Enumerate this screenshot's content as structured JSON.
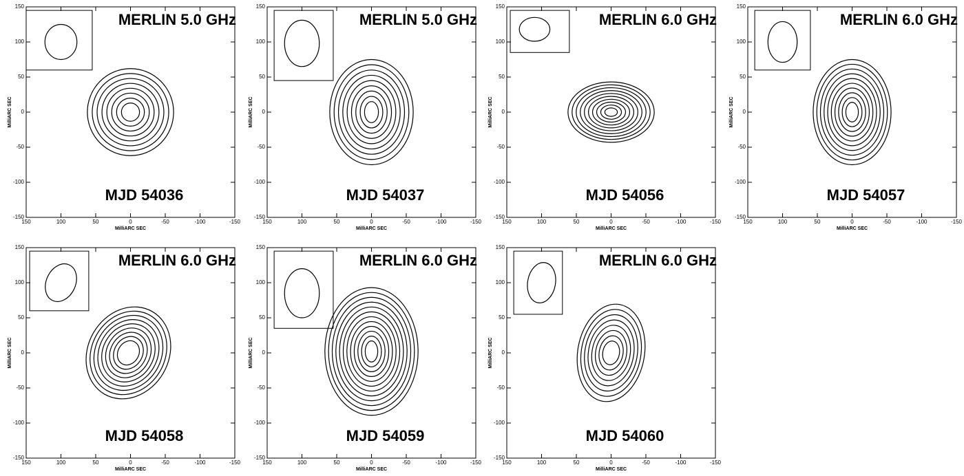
{
  "chart_data": [
    {
      "type": "contour",
      "title": "MERLIN 5.0 GHz",
      "label": "MJD 54036",
      "xlabel": "MilliARC SEC",
      "ylabel": "MilliARC SEC",
      "xlim": [
        150,
        -150
      ],
      "ylim": [
        -150,
        150
      ],
      "xticks": [
        150,
        100,
        50,
        0,
        -50,
        -100,
        -150
      ],
      "yticks": [
        -150,
        -100,
        -50,
        0,
        50,
        100,
        150
      ]
    },
    {
      "type": "contour",
      "title": "MERLIN 5.0 GHz",
      "label": "MJD 54037",
      "xlabel": "MilliARC SEC",
      "ylabel": "MilliARC SEC",
      "xlim": [
        150,
        -150
      ],
      "ylim": [
        -150,
        150
      ],
      "xticks": [
        150,
        100,
        50,
        0,
        -50,
        -100,
        -150
      ],
      "yticks": [
        -150,
        -100,
        -50,
        0,
        50,
        100,
        150
      ]
    },
    {
      "type": "contour",
      "title": "MERLIN 6.0 GHz",
      "label": "MJD 54056",
      "xlabel": "MilliARC SEC",
      "ylabel": "MilliARC SEC",
      "xlim": [
        150,
        -150
      ],
      "ylim": [
        -150,
        150
      ],
      "xticks": [
        150,
        100,
        50,
        0,
        -50,
        -100,
        -150
      ],
      "yticks": [
        -150,
        -100,
        -50,
        0,
        50,
        100,
        150
      ]
    },
    {
      "type": "contour",
      "title": "MERLIN 6.0 GHz",
      "label": "MJD 54057",
      "xlabel": "MilliARC SEC",
      "ylabel": "MilliARC SEC",
      "xlim": [
        150,
        -150
      ],
      "ylim": [
        -150,
        150
      ],
      "xticks": [
        150,
        100,
        50,
        0,
        -50,
        -100,
        -150
      ],
      "yticks": [
        -150,
        -100,
        -50,
        0,
        50,
        100,
        150
      ]
    },
    {
      "type": "contour",
      "title": "MERLIN 6.0 GHz",
      "label": "MJD 54058",
      "xlabel": "MilliARC SEC",
      "ylabel": "MilliARC SEC",
      "xlim": [
        150,
        -150
      ],
      "ylim": [
        -150,
        150
      ],
      "xticks": [
        150,
        100,
        50,
        0,
        -50,
        -100,
        -150
      ],
      "yticks": [
        -150,
        -100,
        -50,
        0,
        50,
        100,
        150
      ]
    },
    {
      "type": "contour",
      "title": "MERLIN 6.0 GHz",
      "label": "MJD 54059",
      "xlabel": "MilliARC SEC",
      "ylabel": "MilliARC SEC",
      "xlim": [
        150,
        -150
      ],
      "ylim": [
        -150,
        150
      ],
      "xticks": [
        150,
        100,
        50,
        0,
        -50,
        -100,
        -150
      ],
      "yticks": [
        -150,
        -100,
        -50,
        0,
        50,
        100,
        150
      ]
    },
    {
      "type": "contour",
      "title": "MERLIN 6.0 GHz",
      "label": "MJD 54060",
      "xlabel": "MilliARC SEC",
      "ylabel": "MilliARC SEC",
      "xlim": [
        150,
        -150
      ],
      "ylim": [
        -150,
        150
      ],
      "xticks": [
        150,
        100,
        50,
        0,
        -50,
        -100,
        -150
      ],
      "yticks": [
        -150,
        -100,
        -50,
        0,
        50,
        100,
        150
      ]
    }
  ]
}
